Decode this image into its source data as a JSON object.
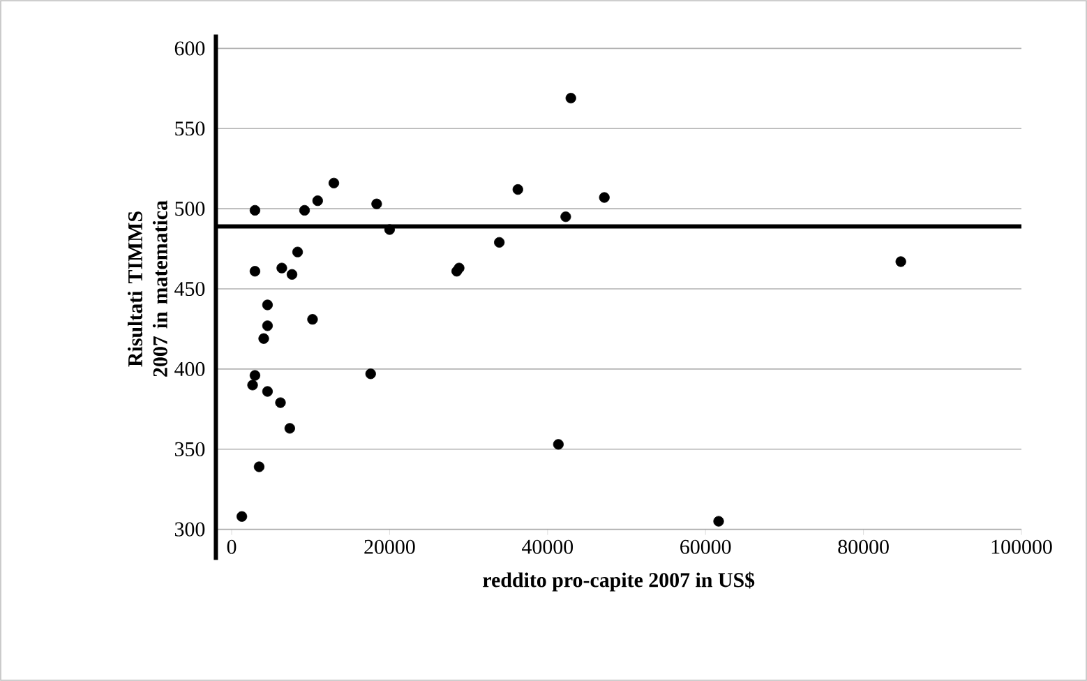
{
  "chart_data": {
    "type": "scatter",
    "xlabel": "reddito pro-capite 2007 in US$",
    "ylabel": "Risultati TIMMS 2007 in matematica",
    "xlim": [
      -2000,
      100000
    ],
    "xticks": [
      0,
      20000,
      40000,
      60000,
      80000,
      100000
    ],
    "ylim": [
      300,
      600
    ],
    "yticks": [
      300,
      350,
      400,
      450,
      500,
      550,
      600
    ],
    "grid": "y",
    "marker": "circle",
    "ref_lines": [
      {
        "axis": "y",
        "value": 489,
        "color": "#000000"
      }
    ],
    "series": [
      {
        "color": "#000000",
        "x": [
          2950,
          9230,
          10890,
          12940,
          18360,
          20000,
          8350,
          2950,
          6350,
          7640,
          28500,
          28800,
          4540,
          4540,
          4060,
          10240,
          2950,
          2650,
          4540,
          6180,
          7360,
          17600,
          3480,
          1290,
          42950,
          36240,
          47190,
          42300,
          33890,
          41370,
          61660,
          84730
        ],
        "values": [
          499,
          499,
          505,
          516,
          503,
          487,
          473,
          461,
          463,
          459,
          461,
          463,
          440,
          427,
          419,
          431,
          396,
          390,
          386,
          379,
          363,
          397,
          339,
          308,
          569,
          512,
          507,
          495,
          479,
          353,
          305,
          467
        ]
      }
    ]
  }
}
